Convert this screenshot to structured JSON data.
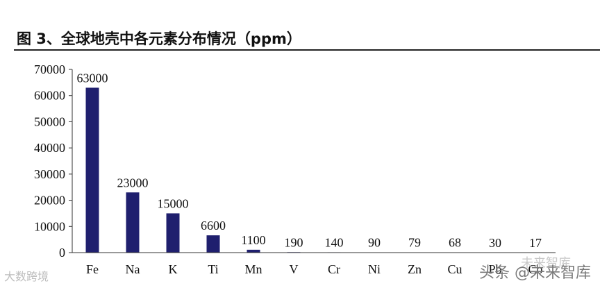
{
  "figure": {
    "title": "图 3、全球地壳中各元素分布情况（ppm）"
  },
  "chart_data": {
    "type": "bar",
    "title": "图 3、全球地壳中各元素分布情况（ppm）",
    "xlabel": "",
    "ylabel": "",
    "categories": [
      "Fe",
      "Na",
      "K",
      "Ti",
      "Mn",
      "V",
      "Cr",
      "Ni",
      "Zn",
      "Cu",
      "Pb",
      "Co"
    ],
    "values": [
      63000,
      23000,
      15000,
      6600,
      1100,
      190,
      140,
      90,
      79,
      68,
      30,
      17
    ],
    "data_labels": [
      "63000",
      "23000",
      "15000",
      "6600",
      "1100",
      "190",
      "140",
      "90",
      "79",
      "68",
      "30",
      "17"
    ],
    "ylim": [
      0,
      70000
    ],
    "yticks": [
      0,
      10000,
      20000,
      30000,
      40000,
      50000,
      60000,
      70000
    ],
    "bar_color": "#1f1f6e",
    "grid": false,
    "legend": "none"
  },
  "watermarks": {
    "left": "大数跨境",
    "right": "头条 @未来智库",
    "right_overlay": "未来智库"
  }
}
